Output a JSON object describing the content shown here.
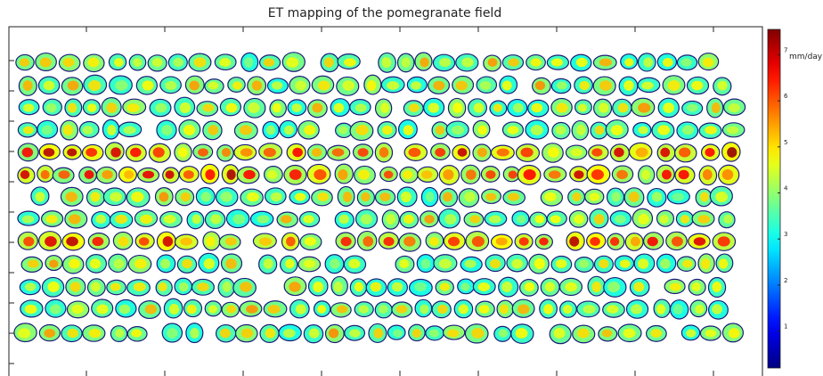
{
  "chart_data": {
    "type": "heatmap",
    "title": "ET mapping of the pomegranate field",
    "colormap": "jet",
    "clim": [
      0.2,
      7.55
    ],
    "cticks": [
      1,
      2,
      3,
      4,
      5,
      6,
      7
    ],
    "colorbar_label": "mm/day"
  }
}
